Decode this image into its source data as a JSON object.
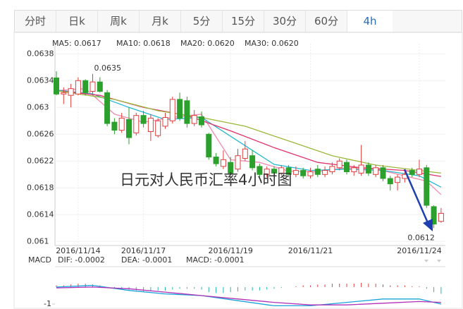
{
  "tabs": [
    "分时",
    "日k",
    "周k",
    "月k",
    "5分",
    "15分",
    "30分",
    "60分",
    "4h"
  ],
  "chart_data": [
    {
      "type": "candlestick",
      "title": "日元对人民币汇率4小时图",
      "ylim": [
        0.06094,
        0.06395
      ],
      "yticks": [
        0.0638,
        0.0634,
        0.063,
        0.0626,
        0.0622,
        0.0618,
        0.0614,
        0.061
      ],
      "xticks": [
        {
          "value": 3,
          "label": "2016/11/14"
        },
        {
          "value": 12,
          "label": "2016/11/17"
        },
        {
          "value": 24,
          "label": "2016/11/19"
        },
        {
          "value": 35,
          "label": "2016/11/21"
        },
        {
          "value": 50,
          "label": "2016/11/24"
        }
      ],
      "up_color": "#e03e3e",
      "down_color": "#2ca02c",
      "candles": [
        [
          0.06344,
          0.06354,
          0.06318,
          0.0632
        ],
        [
          0.0632,
          0.0633,
          0.06305,
          0.06322
        ],
        [
          0.06318,
          0.06335,
          0.063,
          0.06328
        ],
        [
          0.0632,
          0.06345,
          0.06318,
          0.0634
        ],
        [
          0.0634,
          0.06342,
          0.06318,
          0.06322
        ],
        [
          0.06324,
          0.0635,
          0.0632,
          0.06338
        ],
        [
          0.06338,
          0.06345,
          0.06322,
          0.06324
        ],
        [
          0.06322,
          0.06326,
          0.06272,
          0.06276
        ],
        [
          0.06278,
          0.06284,
          0.0626,
          0.06266
        ],
        [
          0.06266,
          0.06292,
          0.06262,
          0.06284
        ],
        [
          0.06282,
          0.063,
          0.06245,
          0.06255
        ],
        [
          0.06262,
          0.06292,
          0.06258,
          0.06288
        ],
        [
          0.06288,
          0.06295,
          0.0627,
          0.06276
        ],
        [
          0.06264,
          0.0629,
          0.0625,
          0.06284
        ],
        [
          0.06258,
          0.06284,
          0.06255,
          0.0628
        ],
        [
          0.06272,
          0.06292,
          0.06268,
          0.06285
        ],
        [
          0.0628,
          0.06316,
          0.06276,
          0.06312
        ],
        [
          0.06312,
          0.06322,
          0.0628,
          0.06284
        ],
        [
          0.0631,
          0.06316,
          0.0627,
          0.06276
        ],
        [
          0.06276,
          0.06296,
          0.06272,
          0.06288
        ],
        [
          0.06286,
          0.06294,
          0.0627,
          0.06274
        ],
        [
          0.0626,
          0.06262,
          0.06222,
          0.06226
        ],
        [
          0.06226,
          0.06232,
          0.06212,
          0.06216
        ],
        [
          0.06212,
          0.06236,
          0.06208,
          0.06222
        ],
        [
          0.06218,
          0.06226,
          0.06198,
          0.06202
        ],
        [
          0.06208,
          0.06238,
          0.06204,
          0.06228
        ],
        [
          0.06224,
          0.0625,
          0.0622,
          0.06238
        ],
        [
          0.06228,
          0.06236,
          0.06206,
          0.0621
        ],
        [
          0.06212,
          0.06216,
          0.06196,
          0.062
        ],
        [
          0.062,
          0.06212,
          0.06196,
          0.06208
        ],
        [
          0.06208,
          0.06212,
          0.06198,
          0.06202
        ],
        [
          0.06202,
          0.06214,
          0.06198,
          0.0621
        ],
        [
          0.0621,
          0.06214,
          0.06196,
          0.062
        ],
        [
          0.062,
          0.06212,
          0.06196,
          0.06206
        ],
        [
          0.06206,
          0.0621,
          0.06194,
          0.06198
        ],
        [
          0.06198,
          0.0621,
          0.06194,
          0.06204
        ],
        [
          0.06208,
          0.06214,
          0.06196,
          0.062
        ],
        [
          0.062,
          0.06212,
          0.06196,
          0.06206
        ],
        [
          0.06204,
          0.06218,
          0.062,
          0.06212
        ],
        [
          0.0621,
          0.06224,
          0.06206,
          0.0622
        ],
        [
          0.06218,
          0.06222,
          0.062,
          0.06204
        ],
        [
          0.06204,
          0.06214,
          0.06198,
          0.0621
        ],
        [
          0.06202,
          0.06244,
          0.06198,
          0.06214
        ],
        [
          0.06214,
          0.06218,
          0.06198,
          0.06202
        ],
        [
          0.062,
          0.06214,
          0.06196,
          0.0621
        ],
        [
          0.0621,
          0.06214,
          0.0619,
          0.06194
        ],
        [
          0.06194,
          0.06198,
          0.06176,
          0.06186
        ],
        [
          0.06188,
          0.062,
          0.06176,
          0.06196
        ],
        [
          0.06194,
          0.06204,
          0.06188,
          0.062
        ],
        [
          0.06206,
          0.0621,
          0.06196,
          0.062
        ],
        [
          0.062,
          0.06222,
          0.06196,
          0.06208
        ],
        [
          0.0621,
          0.06214,
          0.0615,
          0.06154
        ],
        [
          0.06152,
          0.06154,
          0.0612,
          0.06126
        ],
        [
          0.0613,
          0.0615,
          0.06128,
          0.06142
        ]
      ],
      "annotations": [
        {
          "x": 5,
          "y": 0.0635
        },
        {
          "x": 52,
          "y": 0.0612
        }
      ],
      "series": [
        {
          "name": "MA5: 0.0617",
          "color": "#f08ab0",
          "x": [
            0,
            4,
            8,
            12,
            16,
            20,
            24,
            28,
            32,
            36,
            40,
            44,
            48,
            51,
            53
          ],
          "values": [
            0.06325,
            0.06328,
            0.0629,
            0.06278,
            0.06285,
            0.0629,
            0.06222,
            0.06218,
            0.06205,
            0.06204,
            0.0621,
            0.06208,
            0.06198,
            0.0619,
            0.0617
          ]
        },
        {
          "name": "MA10: 0.0618",
          "color": "#22b8d0",
          "x": [
            0,
            5,
            10,
            15,
            20,
            25,
            30,
            35,
            40,
            45,
            50,
            53
          ],
          "values": [
            0.06326,
            0.0632,
            0.063,
            0.06282,
            0.06285,
            0.0625,
            0.06215,
            0.06206,
            0.06208,
            0.06206,
            0.06198,
            0.06181
          ]
        },
        {
          "name": "MA20: 0.0620",
          "color": "#e0336a",
          "x": [
            0,
            6,
            12,
            18,
            24,
            30,
            36,
            42,
            48,
            53
          ],
          "values": [
            0.06325,
            0.06318,
            0.063,
            0.06288,
            0.06265,
            0.0624,
            0.06218,
            0.0621,
            0.06206,
            0.06197
          ]
        },
        {
          "name": "MA30: 0.0620",
          "color": "#9ab83a",
          "x": [
            0,
            8,
            14,
            20,
            26,
            32,
            38,
            44,
            50,
            53
          ],
          "values": [
            0.06325,
            0.06312,
            0.06295,
            0.06285,
            0.06272,
            0.0625,
            0.06228,
            0.06214,
            0.06206,
            0.06202
          ]
        }
      ]
    },
    {
      "type": "macd",
      "title": "MACD",
      "ylim": [
        -1.29,
        1.2
      ],
      "yticks": [
        -1
      ],
      "histogram": {
        "name": "MACD: -0.0001",
        "color": "#e03e3e",
        "neg_color": "#22b8b0",
        "values": [
          0.1,
          0.1,
          0.15,
          0.2,
          0.2,
          0.15,
          0.1,
          0,
          -0.1,
          -0.15,
          -0.2,
          -0.2,
          -0.25,
          -0.25,
          -0.2,
          -0.2,
          -0.15,
          -0.1,
          -0.1,
          -0.1,
          -0.15,
          -0.3,
          -0.35,
          -0.35,
          -0.3,
          -0.25,
          -0.2,
          -0.2,
          -0.2,
          -0.15,
          -0.1,
          -0.05,
          0,
          0.05,
          0.1,
          0.1,
          0.15,
          0.15,
          0.2,
          0.2,
          0.2,
          0.2,
          0.25,
          0.2,
          0.2,
          0.15,
          0.1,
          0.1,
          0.1,
          0.05,
          0.05,
          -0.1,
          -0.3,
          -0.4
        ]
      },
      "series": [
        {
          "name": "DIF: -0.0002",
          "color": "#1aa3d9",
          "x": [
            0,
            5,
            10,
            15,
            20,
            25,
            30,
            35,
            40,
            45,
            50,
            53
          ],
          "values": [
            0,
            0.1,
            -0.2,
            -0.4,
            -0.5,
            -0.8,
            -1.1,
            -1.1,
            -0.9,
            -0.7,
            -0.7,
            -1
          ]
        },
        {
          "name": "DEA: -0.0001",
          "color": "#b030b8",
          "x": [
            0,
            5,
            10,
            15,
            20,
            25,
            30,
            35,
            40,
            45,
            50,
            53
          ],
          "values": [
            -0.05,
            0,
            -0.1,
            -0.3,
            -0.5,
            -0.7,
            -0.9,
            -1.05,
            -1.05,
            -0.95,
            -0.85,
            -0.9
          ]
        }
      ]
    }
  ]
}
